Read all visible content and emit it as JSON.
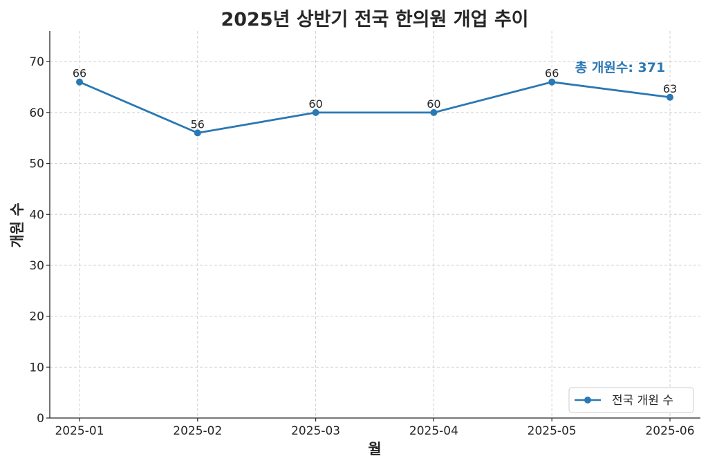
{
  "chart_data": {
    "type": "line",
    "title": "2025년 상반기 전국 한의원 개업 추이",
    "xlabel": "월",
    "ylabel": "개원 수",
    "categories": [
      "2025-01",
      "2025-02",
      "2025-03",
      "2025-04",
      "2025-05",
      "2025-06"
    ],
    "series": [
      {
        "name": "전국 개원 수",
        "values": [
          66,
          56,
          60,
          60,
          66,
          63
        ],
        "color": "#2a78b4"
      }
    ],
    "ylim": [
      0,
      76
    ],
    "yticks": [
      0,
      10,
      20,
      30,
      40,
      50,
      60,
      70
    ],
    "grid": true,
    "legend_position": "bottom-right",
    "data_labels": true,
    "annotation": {
      "text": "총 개원수: 371",
      "color": "#2a78b4"
    }
  }
}
